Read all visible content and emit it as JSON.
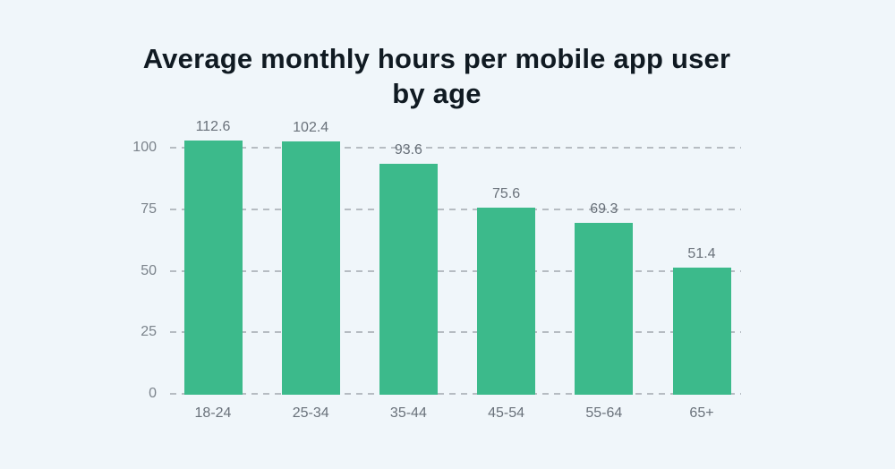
{
  "chart_data": {
    "type": "bar",
    "title": "Average monthly hours per mobile app user by age",
    "categories": [
      "18-24",
      "25-34",
      "35-44",
      "45-54",
      "55-64",
      "65+"
    ],
    "values": [
      112.6,
      102.4,
      93.6,
      75.6,
      69.3,
      51.4
    ],
    "value_labels": [
      "112.6",
      "102.4",
      "93.6",
      "75.6",
      "69.3",
      "51.4"
    ],
    "xlabel": "",
    "ylabel": "",
    "yticks": [
      0,
      25,
      50,
      75,
      100
    ],
    "ylim": [
      0,
      103
    ],
    "grid": "horizontal-dashed",
    "legend_position": "none",
    "colors": {
      "background": "#f0f6fa",
      "bar": "#3cba8b",
      "gridline": "#b6bcc2",
      "axis_text": "#7b838b",
      "label_text": "#69717a",
      "title_text": "#101a22"
    }
  }
}
